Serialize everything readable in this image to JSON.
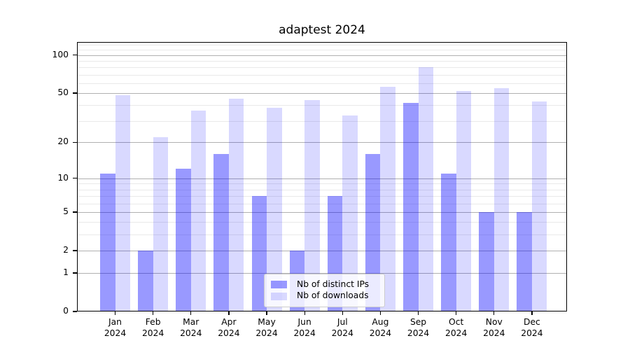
{
  "chart_data": {
    "type": "bar",
    "title": "adaptest 2024",
    "x_categories": [
      "Jan",
      "Feb",
      "Mar",
      "Apr",
      "May",
      "Jun",
      "Jul",
      "Aug",
      "Sep",
      "Oct",
      "Nov",
      "Dec"
    ],
    "x_year": "2024",
    "series": [
      {
        "name": "Nb of distinct IPs",
        "base_hex": "#0000ff",
        "alpha": 0.4,
        "approx_hex": "#9999ff",
        "fill": "rgba(0,0,255,0.4)",
        "values": [
          11,
          2,
          12,
          16,
          7,
          2,
          7,
          16,
          42,
          11,
          5,
          5
        ]
      },
      {
        "name": "Nb of downloads",
        "base_hex": "#0000ff",
        "alpha": 0.15,
        "approx_hex": "#d9d9ff",
        "fill": "rgba(0,0,255,0.15)",
        "values": [
          48,
          22,
          36,
          45,
          38,
          44,
          33,
          56,
          80,
          52,
          55,
          43
        ]
      }
    ],
    "y_scale": "log1p",
    "ylim": [
      0,
      127
    ],
    "y_major_ticks": [
      0,
      1,
      2,
      5,
      10,
      20,
      50,
      100
    ],
    "y_minor_ticks": [
      3,
      4,
      6,
      7,
      8,
      9,
      30,
      40,
      60,
      70,
      80,
      90,
      110,
      120
    ],
    "grid": {
      "major_color": "#b0b0b0",
      "minor_color": "#e9e9e9"
    },
    "spine_color": "#000000",
    "legend": {
      "position": "lower center",
      "entries": [
        "Nb of distinct IPs",
        "Nb of downloads"
      ]
    }
  }
}
